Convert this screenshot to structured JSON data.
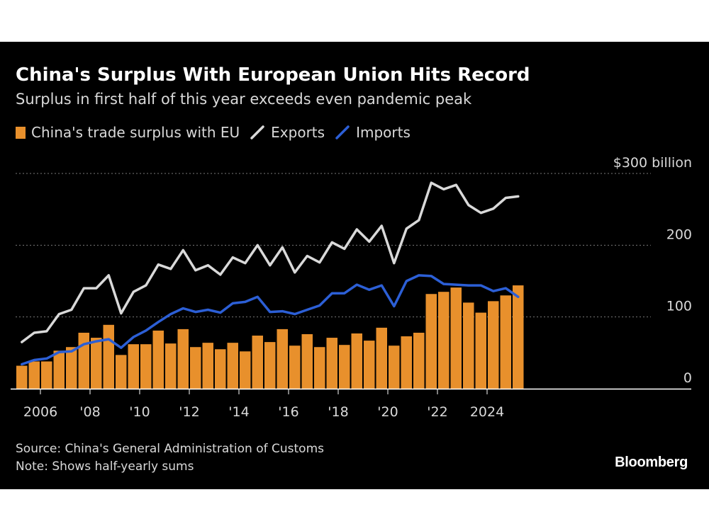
{
  "header": {
    "title": "China's Surplus With European Union Hits Record",
    "subtitle": "Surplus in first half of this year exceeds even pandemic peak"
  },
  "legend": [
    {
      "label": "China's trade surplus with EU",
      "kind": "bar",
      "color": "#e8902c"
    },
    {
      "label": "Exports",
      "kind": "line",
      "color": "#d9d9d9"
    },
    {
      "label": "Imports",
      "kind": "line",
      "color": "#2c5fd6"
    }
  ],
  "footer": {
    "source": "Source: China's General Administration of Customs",
    "note": "Note: Shows half-yearly sums",
    "logo": "Bloomberg"
  },
  "chart_data": {
    "type": "bar",
    "title": "China's Surplus With European Union Hits Record",
    "subtitle": "Surplus in first half of this year exceeds even pandemic peak",
    "y_unit_label": "$300 billion",
    "ylim": [
      0,
      300
    ],
    "yticks": [
      0,
      100,
      200,
      300
    ],
    "ytick_labels": [
      "0",
      "100",
      "200",
      "$300 billion"
    ],
    "grid": true,
    "legend_position": "top-left",
    "xtick_labels": [
      "2006",
      "'08",
      "'10",
      "'12",
      "'14",
      "'16",
      "'18",
      "'20",
      "'22",
      "2024"
    ],
    "xtick_years": [
      2006,
      2008,
      2010,
      2012,
      2014,
      2016,
      2018,
      2020,
      2022,
      2024
    ],
    "x_start": 2005,
    "periods": [
      "H1 2005",
      "H2 2005",
      "H1 2006",
      "H2 2006",
      "H1 2007",
      "H2 2007",
      "H1 2008",
      "H2 2008",
      "H1 2009",
      "H2 2009",
      "H1 2010",
      "H2 2010",
      "H1 2011",
      "H2 2011",
      "H1 2012",
      "H2 2012",
      "H1 2013",
      "H2 2013",
      "H1 2014",
      "H2 2014",
      "H1 2015",
      "H2 2015",
      "H1 2016",
      "H2 2016",
      "H1 2017",
      "H2 2017",
      "H1 2018",
      "H2 2018",
      "H1 2019",
      "H2 2019",
      "H1 2020",
      "H2 2020",
      "H1 2021",
      "H2 2021",
      "H1 2022",
      "H2 2022",
      "H1 2023",
      "H2 2023",
      "H1 2024",
      "H2 2024",
      "H1 2025"
    ],
    "series": [
      {
        "name": "China's trade surplus with EU",
        "type": "bar",
        "color": "#e8902c",
        "values": [
          32,
          38,
          38,
          53,
          58,
          78,
          71,
          89,
          47,
          62,
          62,
          81,
          63,
          83,
          58,
          64,
          55,
          64,
          52,
          74,
          65,
          83,
          60,
          76,
          58,
          71,
          61,
          77,
          67,
          85,
          60,
          73,
          78,
          132,
          135,
          141,
          120,
          106,
          122,
          130,
          144
        ]
      },
      {
        "name": "Exports",
        "type": "line",
        "color": "#d9d9d9",
        "values": [
          65,
          78,
          80,
          104,
          110,
          140,
          140,
          158,
          105,
          135,
          144,
          173,
          167,
          193,
          165,
          172,
          159,
          183,
          175,
          200,
          172,
          197,
          162,
          185,
          176,
          204,
          195,
          222,
          205,
          227,
          175,
          223,
          235,
          287,
          278,
          284,
          256,
          245,
          251,
          266,
          268
        ]
      },
      {
        "name": "Imports",
        "type": "line",
        "color": "#2c5fd6",
        "values": [
          34,
          40,
          42,
          51,
          52,
          62,
          66,
          69,
          57,
          72,
          81,
          93,
          104,
          112,
          107,
          110,
          106,
          119,
          121,
          128,
          107,
          108,
          104,
          110,
          116,
          133,
          133,
          145,
          138,
          144,
          115,
          150,
          158,
          157,
          146,
          145,
          144,
          144,
          136,
          140,
          128
        ]
      }
    ]
  }
}
